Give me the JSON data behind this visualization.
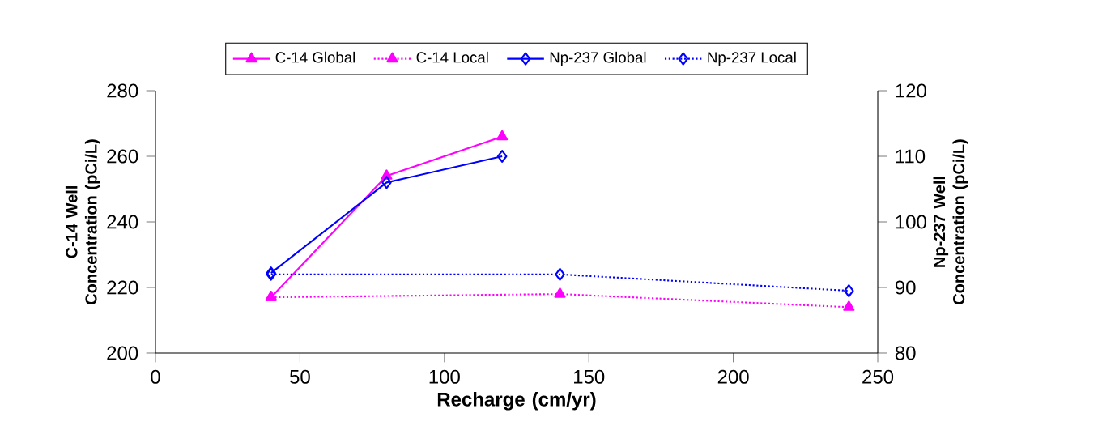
{
  "chart_data": {
    "type": "line",
    "xlabel": "Recharge (cm/yr)",
    "ylabel": "C-14 Well Concentration (pCi/L)",
    "y2label": "Np-237 Well Concentration (pCi/L)",
    "xlim": [
      0,
      250
    ],
    "xticks": [
      0,
      50,
      100,
      150,
      200,
      250
    ],
    "ylim": [
      200,
      280
    ],
    "yticks": [
      200,
      220,
      240,
      260,
      280
    ],
    "y2lim": [
      80,
      120
    ],
    "y2ticks": [
      80,
      90,
      100,
      110,
      120
    ],
    "legend": "top",
    "grid": false,
    "series": [
      {
        "name": "C-14 Global",
        "color": "#ff00ff",
        "x": [
          40,
          80,
          120
        ],
        "values": [
          217,
          254,
          266
        ],
        "marker": "triangle",
        "line_style": "solid"
      },
      {
        "name": "C-14 Local",
        "color": "#ff00ff",
        "x": [
          40,
          140,
          240
        ],
        "values": [
          217,
          218,
          214
        ],
        "marker": "triangle",
        "line_style": "dotted"
      },
      {
        "name": "Np-237 Global",
        "color": "#0000ff",
        "x": [
          40,
          80,
          120
        ],
        "values": [
          92.2,
          106,
          110
        ],
        "marker": "diamond",
        "line_style": "solid",
        "axis": "y2"
      },
      {
        "name": "Np-237 Local",
        "color": "#0000ff",
        "x": [
          40,
          140,
          240
        ],
        "values": [
          92,
          92,
          89.5
        ],
        "marker": "diamond",
        "line_style": "dotted",
        "axis": "y2"
      }
    ]
  }
}
